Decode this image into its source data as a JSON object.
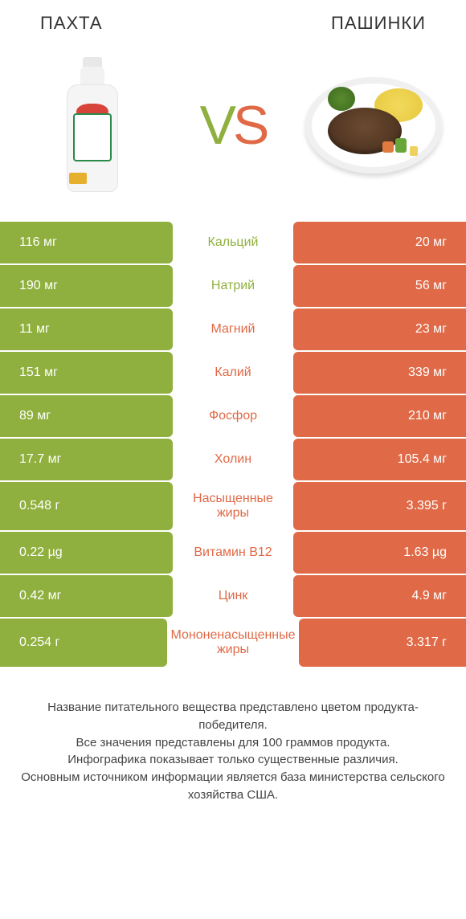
{
  "colors": {
    "green": "#8fb03e",
    "orange": "#e06a47",
    "neutral_text": "#666666",
    "mid_green": "#8fb03e",
    "mid_orange": "#e06a47"
  },
  "header": {
    "left_title": "ПАХТА",
    "right_title": "ПАШИНКИ"
  },
  "vs": {
    "v": "V",
    "s": "S"
  },
  "rows": [
    {
      "nutrient": "Кальций",
      "left": "116 мг",
      "right": "20 мг",
      "winner": "left",
      "tall": false
    },
    {
      "nutrient": "Натрий",
      "left": "190 мг",
      "right": "56 мг",
      "winner": "left",
      "tall": false
    },
    {
      "nutrient": "Магний",
      "left": "11 мг",
      "right": "23 мг",
      "winner": "right",
      "tall": false
    },
    {
      "nutrient": "Калий",
      "left": "151 мг",
      "right": "339 мг",
      "winner": "right",
      "tall": false
    },
    {
      "nutrient": "Фосфор",
      "left": "89 мг",
      "right": "210 мг",
      "winner": "right",
      "tall": false
    },
    {
      "nutrient": "Холин",
      "left": "17.7 мг",
      "right": "105.4 мг",
      "winner": "right",
      "tall": false
    },
    {
      "nutrient": "Насыщенные жиры",
      "left": "0.548 г",
      "right": "3.395 г",
      "winner": "right",
      "tall": true
    },
    {
      "nutrient": "Витамин B12",
      "left": "0.22 µg",
      "right": "1.63 µg",
      "winner": "right",
      "tall": false
    },
    {
      "nutrient": "Цинк",
      "left": "0.42 мг",
      "right": "4.9 мг",
      "winner": "right",
      "tall": false
    },
    {
      "nutrient": "Мононенасыщенные жиры",
      "left": "0.254 г",
      "right": "3.317 г",
      "winner": "right",
      "tall": true
    }
  ],
  "footer_lines": [
    "Название питательного вещества представлено цветом продукта-победителя.",
    "Все значения представлены для 100 граммов продукта.",
    "Инфографика показывает только существенные различия.",
    "Основным источником информации является база министерства сельского хозяйства США."
  ]
}
